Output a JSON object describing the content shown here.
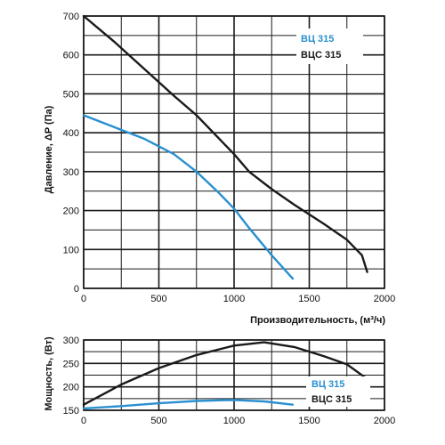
{
  "colors": {
    "blue": "#2a90cf",
    "black": "#1a1a1a",
    "grid": "#1a1a1a"
  },
  "legend": {
    "series_1": "ВЦ 315",
    "series_2": "ВЦС 315"
  },
  "chart_data": [
    {
      "type": "line",
      "xlabel": "Производительность, (м³/ч)",
      "ylabel": "Давление, ΔP (Па)",
      "xlim": [
        0,
        2000
      ],
      "ylim": [
        0,
        700
      ],
      "xticks": [
        0,
        500,
        1000,
        1500,
        2000
      ],
      "yticks": [
        0,
        100,
        200,
        300,
        400,
        500,
        600,
        700
      ],
      "legend_position": "top-right",
      "grid": true,
      "series": [
        {
          "name": "ВЦ 315",
          "color": "blue",
          "x": [
            0,
            200,
            400,
            600,
            750,
            900,
            1000,
            1100,
            1250,
            1390
          ],
          "y": [
            445,
            415,
            385,
            345,
            300,
            245,
            205,
            155,
            85,
            25
          ]
        },
        {
          "name": "ВЦС 315",
          "color": "black",
          "x": [
            0,
            200,
            400,
            600,
            750,
            900,
            1000,
            1100,
            1250,
            1400,
            1600,
            1750,
            1850,
            1885
          ],
          "y": [
            700,
            635,
            565,
            495,
            445,
            385,
            345,
            300,
            255,
            215,
            165,
            125,
            85,
            42
          ]
        }
      ]
    },
    {
      "type": "line",
      "xlabel": "",
      "ylabel": "Мощность, (Вт)",
      "xlim": [
        0,
        2000
      ],
      "ylim": [
        150,
        300
      ],
      "xticks": [
        0,
        500,
        1000,
        1500,
        2000
      ],
      "yticks": [
        150,
        200,
        250,
        300
      ],
      "legend_position": "bottom-right",
      "grid": true,
      "series": [
        {
          "name": "ВЦ 315",
          "color": "blue",
          "x": [
            0,
            250,
            500,
            750,
            1000,
            1200,
            1390
          ],
          "y": [
            154,
            159,
            165,
            170,
            172,
            169,
            162
          ]
        },
        {
          "name": "ВЦС 315",
          "color": "black",
          "x": [
            0,
            250,
            500,
            750,
            1000,
            1200,
            1400,
            1600,
            1750,
            1880
          ],
          "y": [
            162,
            205,
            240,
            268,
            288,
            295,
            285,
            265,
            248,
            218
          ]
        }
      ]
    }
  ]
}
